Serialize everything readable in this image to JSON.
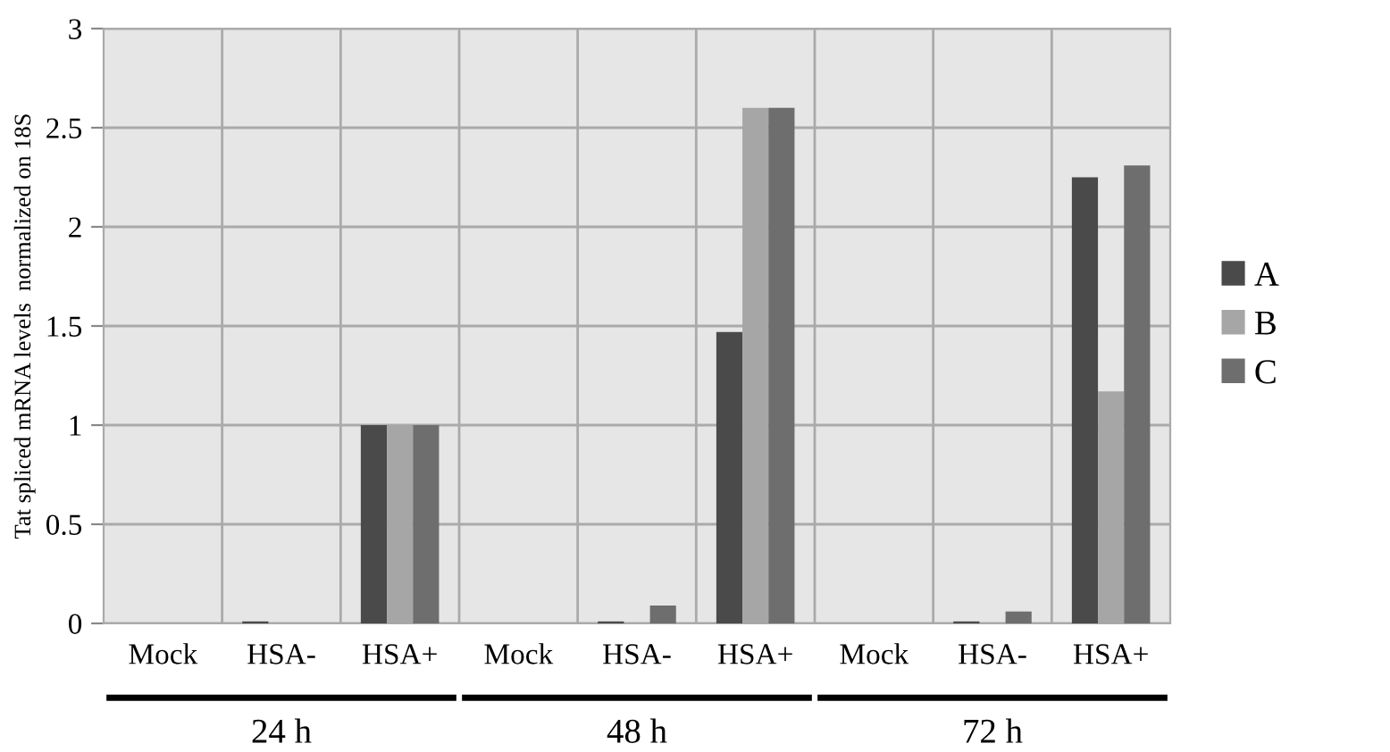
{
  "chart_data": {
    "type": "bar",
    "ylabel": "Tat spliced mRNA levels  normalized on 18S",
    "categories": [
      "Mock",
      "HSA-",
      "HSA+",
      "Mock",
      "HSA-",
      "HSA+",
      "Mock",
      "HSA-",
      "HSA+"
    ],
    "annotations": [
      "24 h",
      "48 h",
      "72 h"
    ],
    "series": [
      {
        "name": "A",
        "color": "#4a4a4a",
        "values": [
          0,
          0.01,
          1,
          0,
          0.01,
          1.47,
          0,
          0.01,
          2.25
        ]
      },
      {
        "name": "B",
        "color": "#a6a6a6",
        "values": [
          0,
          null,
          1,
          0,
          null,
          2.6,
          0,
          null,
          1.17
        ]
      },
      {
        "name": "C",
        "color": "#6e6e6e",
        "values": [
          0,
          null,
          1,
          0,
          0.09,
          2.6,
          0,
          0.06,
          2.31
        ]
      }
    ],
    "ylim": [
      0,
      3
    ],
    "yticks": [
      0,
      0.5,
      1,
      1.5,
      2,
      2.5,
      3
    ],
    "grid": true,
    "legend": "right"
  }
}
